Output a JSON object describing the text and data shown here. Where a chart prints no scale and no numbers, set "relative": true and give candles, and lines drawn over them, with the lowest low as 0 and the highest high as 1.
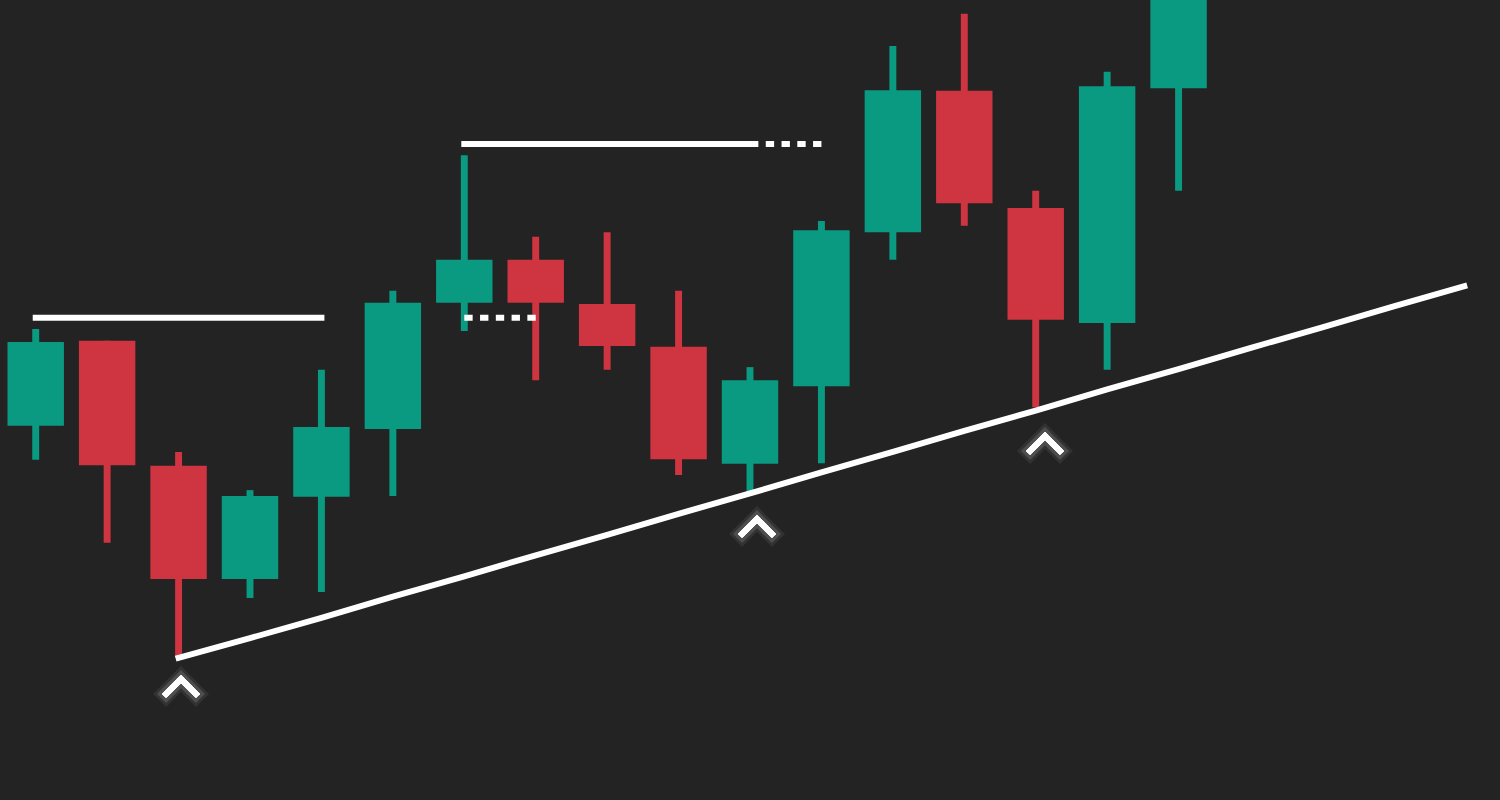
{
  "chart_data": {
    "type": "candlestick",
    "relative": true,
    "categories": [
      null,
      null,
      null,
      null,
      null,
      null,
      null,
      null,
      null,
      null,
      null,
      null,
      null,
      null,
      null,
      null,
      null,
      null,
      null,
      null,
      null
    ],
    "ohlc": [
      [
        0.353,
        0.5,
        0.301,
        0.48
      ],
      [
        0.482,
        0.482,
        0.175,
        0.293
      ],
      [
        0.292,
        0.313,
        0.0,
        0.12
      ],
      [
        0.12,
        0.255,
        0.091,
        0.246
      ],
      [
        0.245,
        0.438,
        0.1,
        0.351
      ],
      [
        0.348,
        0.558,
        0.246,
        0.54
      ],
      [
        0.54,
        0.764,
        0.497,
        0.605
      ],
      [
        0.605,
        0.64,
        0.422,
        0.54
      ],
      [
        0.538,
        0.647,
        0.438,
        0.474
      ],
      [
        0.473,
        0.558,
        0.278,
        0.302
      ],
      [
        0.295,
        0.442,
        0.251,
        0.422
      ],
      [
        0.413,
        0.664,
        0.296,
        0.65
      ],
      [
        0.647,
        0.93,
        0.605,
        0.863
      ],
      [
        0.862,
        0.979,
        0.657,
        0.691
      ],
      [
        0.684,
        0.71,
        0.381,
        0.514
      ],
      [
        0.509,
        0.891,
        0.438,
        0.869
      ],
      [
        0.866,
        1.0,
        0.71,
        1.0
      ],
      null,
      null,
      null,
      null
    ],
    "colors": [
      "#0a9a81",
      "#cf3441",
      "#cf3441",
      "#0a9a81",
      "#0a9a81",
      "#0a9a81",
      "#0a9a81",
      "#cf3441",
      "#cf3441",
      "#cf3441",
      "#0a9a81",
      "#0a9a81",
      "#0a9a81",
      "#cf3441",
      "#cf3441",
      "#0a9a81",
      "#0a9a81",
      null,
      null,
      null,
      null
    ],
    "series": [
      {
        "type": "line",
        "color": "#ffffff",
        "line_style": "solid",
        "values": [
          0.517,
          0.517,
          0.517,
          0.517,
          0.517,
          null,
          null,
          null,
          null,
          null,
          null,
          null,
          null,
          null,
          null,
          null,
          null,
          null,
          null,
          null,
          null
        ]
      },
      {
        "type": "line",
        "color": "#ffffff",
        "line_style": "dotted",
        "values": [
          null,
          null,
          null,
          null,
          null,
          null,
          0.517,
          0.517,
          null,
          null,
          null,
          null,
          null,
          null,
          null,
          null,
          null,
          null,
          null,
          null,
          null
        ]
      },
      {
        "type": "line",
        "color": "#ffffff",
        "line_style": "solid",
        "values": [
          null,
          null,
          null,
          null,
          null,
          null,
          0.781,
          0.781,
          0.781,
          0.781,
          0.781,
          null,
          null,
          null,
          null,
          null,
          null,
          null,
          null,
          null,
          null
        ]
      },
      {
        "type": "line",
        "color": "#ffffff",
        "line_style": "dotted",
        "values": [
          null,
          null,
          null,
          null,
          null,
          null,
          null,
          null,
          null,
          null,
          0.781,
          0.781,
          null,
          null,
          null,
          null,
          null,
          null,
          null,
          null,
          null
        ]
      },
      {
        "type": "line",
        "color": "#ffffff",
        "line_style": "solid",
        "values": [
          null,
          null,
          0.0,
          0.03,
          0.061,
          0.093,
          0.124,
          0.156,
          0.187,
          0.219,
          0.25,
          0.282,
          0.313,
          0.345,
          0.376,
          0.408,
          0.439,
          0.471,
          0.502,
          0.534,
          0.565
        ]
      }
    ]
  }
}
